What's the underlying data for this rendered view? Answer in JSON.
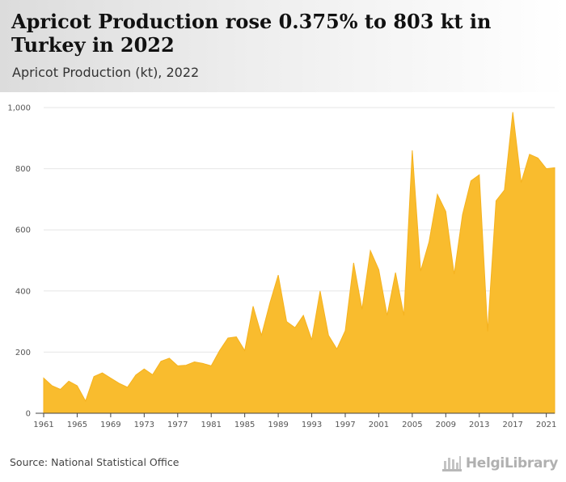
{
  "header": {
    "title": "Apricot Production rose 0.375% to 803 kt in Turkey in 2022",
    "subtitle": "Apricot Production (kt), 2022"
  },
  "footer": {
    "source": "Source: National Statistical Office",
    "logo_text": "HelgiLibrary"
  },
  "colors": {
    "area_fill": "#f9bc2e",
    "area_stroke": "#f5b21f",
    "gridline": "#e6e6e6",
    "axis": "#444444"
  },
  "chart_data": {
    "type": "area",
    "title": "Apricot Production rose 0.375% to 803 kt in Turkey in 2022",
    "subtitle": "Apricot Production (kt), 2022",
    "xlabel": "",
    "ylabel": "",
    "ylim": [
      0,
      1000
    ],
    "xlim": [
      1961,
      2022
    ],
    "y_ticks": [
      0,
      200,
      400,
      600,
      800,
      1000
    ],
    "y_tick_labels": [
      "0",
      "200",
      "400",
      "600",
      "800",
      "1,000"
    ],
    "x_ticks": [
      1961,
      1965,
      1969,
      1973,
      1977,
      1981,
      1985,
      1989,
      1993,
      1997,
      2001,
      2005,
      2009,
      2013,
      2017,
      2021
    ],
    "grid": true,
    "legend": "none",
    "series": [
      {
        "x": [
          1961,
          1962,
          1963,
          1964,
          1965,
          1966,
          1967,
          1968,
          1969,
          1970,
          1971,
          1972,
          1973,
          1974,
          1975,
          1976,
          1977,
          1978,
          1979,
          1980,
          1981,
          1982,
          1983,
          1984,
          1985,
          1986,
          1987,
          1988,
          1989,
          1990,
          1991,
          1992,
          1993,
          1994,
          1995,
          1996,
          1997,
          1998,
          1999,
          2000,
          2001,
          2002,
          2003,
          2004,
          2005,
          2006,
          2007,
          2008,
          2009,
          2010,
          2011,
          2012,
          2013,
          2014,
          2015,
          2016,
          2017,
          2018,
          2019,
          2020,
          2021,
          2022
        ],
        "values": [
          115,
          90,
          78,
          105,
          90,
          40,
          120,
          132,
          115,
          98,
          85,
          125,
          145,
          126,
          170,
          180,
          155,
          157,
          168,
          163,
          155,
          205,
          246,
          250,
          205,
          350,
          255,
          360,
          452,
          300,
          280,
          320,
          240,
          400,
          255,
          210,
          270,
          492,
          340,
          532,
          470,
          320,
          460,
          320,
          860,
          465,
          560,
          716,
          660,
          455,
          650,
          760,
          780,
          268,
          695,
          730,
          985,
          755,
          847,
          835,
          800,
          803
        ]
      }
    ]
  }
}
